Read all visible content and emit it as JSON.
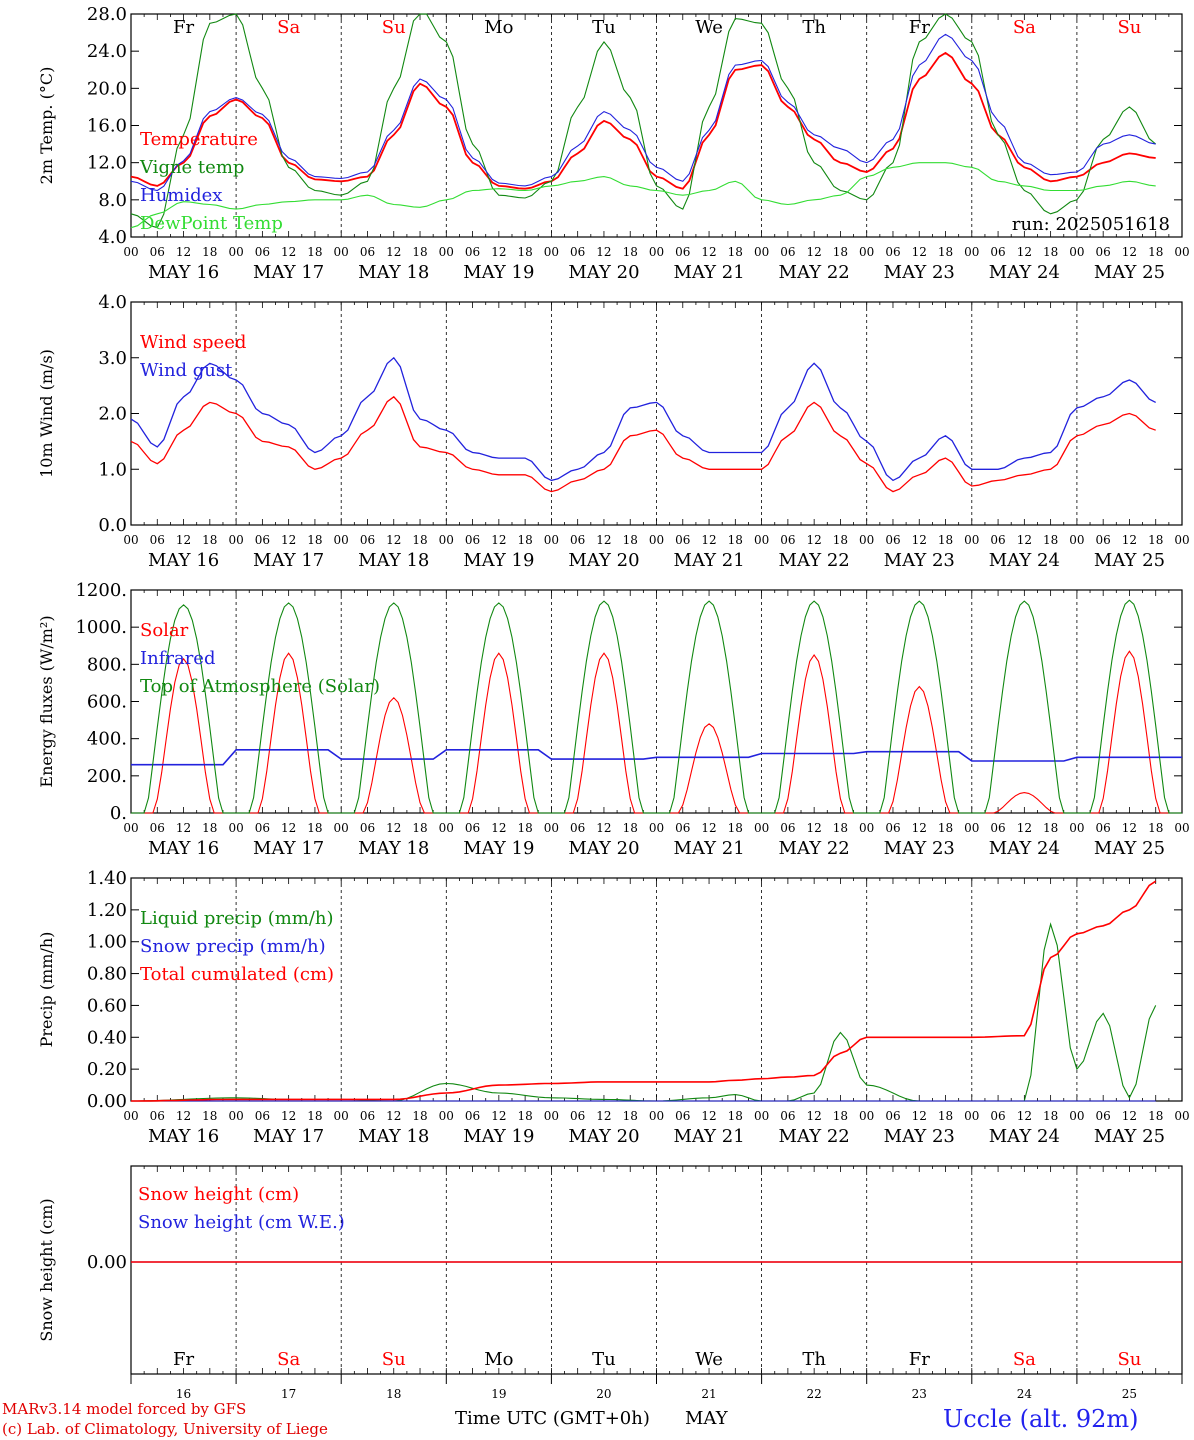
{
  "chart_data": [
    {
      "type": "line",
      "ylabel": "2m Temp. (°C)",
      "ylim": [
        4.0,
        28.0
      ],
      "yticks": [
        "4.0",
        "8.0",
        "12.0",
        "16.0",
        "20.0",
        "24.0",
        "28.0"
      ],
      "annotation": "run: 2025051618",
      "x_hours": [
        0,
        6,
        12,
        18,
        24,
        30,
        36,
        42,
        48,
        54,
        60,
        66,
        72,
        78,
        84,
        90,
        96,
        102,
        108,
        114,
        120,
        126,
        132,
        138,
        144,
        150,
        156,
        162,
        168,
        174,
        180,
        186,
        192,
        198,
        204,
        210,
        216,
        222,
        228,
        234
      ],
      "series": [
        {
          "name": "Temperature",
          "color": "#ff0000",
          "values": [
            10.5,
            9.5,
            12.0,
            17.0,
            18.8,
            16.8,
            12.0,
            10.2,
            10.0,
            10.5,
            15.0,
            20.5,
            18.0,
            12.0,
            9.5,
            9.2,
            10.0,
            13.0,
            16.5,
            14.5,
            10.5,
            9.2,
            15.0,
            22.0,
            22.5,
            18.0,
            14.5,
            12.0,
            11.0,
            13.5,
            21.0,
            23.8,
            20.5,
            15.0,
            11.5,
            10.0,
            10.5,
            12.0,
            13.0,
            12.5
          ]
        },
        {
          "name": "Vigne temp",
          "color": "#118811",
          "values": [
            6.5,
            5.0,
            15.0,
            27.0,
            28.0,
            20.0,
            11.5,
            9.0,
            8.5,
            10.0,
            20.0,
            28.5,
            25.0,
            14.0,
            8.5,
            8.2,
            10.0,
            18.0,
            25.0,
            19.0,
            9.5,
            7.0,
            18.0,
            27.5,
            27.0,
            20.0,
            12.0,
            9.0,
            8.0,
            12.0,
            25.0,
            28.0,
            25.0,
            15.0,
            9.0,
            6.5,
            8.0,
            14.5,
            18.0,
            14.0
          ]
        },
        {
          "name": "Humidex",
          "color": "#2222dd",
          "values": [
            10.0,
            9.0,
            12.2,
            17.5,
            19.0,
            17.2,
            12.5,
            10.5,
            10.3,
            11.0,
            15.5,
            21.0,
            18.8,
            12.5,
            9.8,
            9.5,
            10.5,
            13.8,
            17.5,
            15.5,
            11.5,
            10.0,
            15.5,
            22.5,
            23.0,
            18.5,
            15.0,
            13.5,
            12.0,
            14.5,
            22.5,
            25.8,
            23.0,
            16.5,
            12.0,
            10.7,
            11.0,
            14.0,
            15.0,
            14.0
          ]
        },
        {
          "name": "DewPoint Temp",
          "color": "#33dd33",
          "values": [
            5.0,
            6.5,
            7.8,
            7.5,
            7.0,
            7.5,
            7.8,
            8.0,
            8.0,
            8.5,
            7.5,
            7.2,
            8.0,
            9.0,
            9.2,
            9.0,
            9.5,
            10.0,
            10.5,
            9.5,
            9.0,
            8.5,
            9.0,
            10.0,
            8.0,
            7.5,
            8.0,
            8.5,
            10.5,
            11.5,
            12.0,
            12.0,
            11.5,
            10.0,
            9.5,
            9.0,
            9.0,
            9.5,
            10.0,
            9.5
          ]
        }
      ]
    },
    {
      "type": "line",
      "ylabel": "10m Wind (m/s)",
      "ylim": [
        0.0,
        4.0
      ],
      "yticks": [
        "0.0",
        "1.0",
        "2.0",
        "3.0",
        "4.0"
      ],
      "x_hours": [
        0,
        6,
        12,
        18,
        24,
        30,
        36,
        42,
        48,
        54,
        60,
        66,
        72,
        78,
        84,
        90,
        96,
        102,
        108,
        114,
        120,
        126,
        132,
        138,
        144,
        150,
        156,
        162,
        168,
        174,
        180,
        186,
        192,
        198,
        204,
        210,
        216,
        222,
        228,
        234
      ],
      "series": [
        {
          "name": "Wind speed",
          "color": "#ff0000",
          "values": [
            1.5,
            1.1,
            1.7,
            2.2,
            2.0,
            1.5,
            1.4,
            1.0,
            1.2,
            1.7,
            2.3,
            1.4,
            1.3,
            1.0,
            0.9,
            0.9,
            0.6,
            0.8,
            1.0,
            1.6,
            1.7,
            1.2,
            1.0,
            1.0,
            1.0,
            1.6,
            2.2,
            1.6,
            1.1,
            0.6,
            0.9,
            1.2,
            0.7,
            0.8,
            0.9,
            1.0,
            1.6,
            1.8,
            2.0,
            1.7
          ]
        },
        {
          "name": "Wind gust",
          "color": "#2222dd",
          "values": [
            1.9,
            1.4,
            2.3,
            2.9,
            2.6,
            2.0,
            1.8,
            1.3,
            1.6,
            2.3,
            3.0,
            1.9,
            1.7,
            1.3,
            1.2,
            1.2,
            0.8,
            1.0,
            1.3,
            2.1,
            2.2,
            1.6,
            1.3,
            1.3,
            1.3,
            2.1,
            2.9,
            2.1,
            1.5,
            0.8,
            1.2,
            1.6,
            1.0,
            1.0,
            1.2,
            1.3,
            2.1,
            2.3,
            2.6,
            2.2
          ]
        }
      ]
    },
    {
      "type": "line",
      "ylabel": "Energy fluxes (W/m²)",
      "ylim": [
        0,
        1200
      ],
      "yticks": [
        "0.",
        "200.",
        "400.",
        "600.",
        "800.",
        "1000.",
        "1200."
      ],
      "series": [
        {
          "name": "Solar",
          "color": "#ff0000",
          "peak_values": [
            830,
            860,
            620,
            860,
            860,
            480,
            850,
            680,
            110,
            870
          ]
        },
        {
          "name": "Infrared",
          "color": "#2222dd",
          "base_values": [
            260,
            340,
            290,
            340,
            290,
            300,
            320,
            330,
            280,
            300
          ]
        },
        {
          "name": "Top of Atmosphere (Solar)",
          "color": "#118811",
          "peak_values": [
            1120,
            1130,
            1130,
            1130,
            1140,
            1140,
            1140,
            1140,
            1140,
            1145
          ]
        }
      ]
    },
    {
      "type": "line",
      "ylabel": "Precip (mm/h)",
      "ylim": [
        0.0,
        1.4
      ],
      "yticks": [
        "0.00",
        "0.20",
        "0.40",
        "0.60",
        "0.80",
        "1.00",
        "1.20",
        "1.40"
      ],
      "x_hours": [
        0,
        24,
        36,
        48,
        60,
        72,
        84,
        96,
        108,
        120,
        132,
        138,
        144,
        150,
        156,
        162,
        168,
        180,
        192,
        204,
        210,
        216,
        222,
        228,
        234
      ],
      "series": [
        {
          "name": "Liquid precip (mm/h)",
          "color": "#118811",
          "values": [
            0,
            0.02,
            0.01,
            0.01,
            0,
            0.11,
            0.05,
            0.02,
            0.01,
            0,
            0.02,
            0.04,
            0,
            0,
            0.05,
            0.43,
            0.1,
            0,
            0,
            0,
            1.11,
            0.2,
            0.55,
            0.02,
            0.6
          ]
        },
        {
          "name": "Snow precip (mm/h)",
          "color": "#2222dd",
          "values": [
            0,
            0,
            0,
            0,
            0,
            0,
            0,
            0,
            0,
            0,
            0,
            0,
            0,
            0,
            0,
            0,
            0,
            0,
            0,
            0,
            0,
            0,
            0,
            0,
            0
          ]
        },
        {
          "name": "Total cumulated (cm)",
          "color": "#ff0000",
          "values": [
            0,
            0.01,
            0.01,
            0.01,
            0.01,
            0.05,
            0.1,
            0.11,
            0.12,
            0.12,
            0.12,
            0.13,
            0.14,
            0.15,
            0.16,
            0.3,
            0.4,
            0.4,
            0.4,
            0.41,
            0.9,
            1.05,
            1.1,
            1.2,
            1.38
          ]
        }
      ]
    },
    {
      "type": "line",
      "ylabel": "Snow height (cm)",
      "yticks": [
        "0.00"
      ],
      "series": [
        {
          "name": "Snow height (cm)",
          "color": "#ff0000",
          "values": [
            0,
            0
          ]
        },
        {
          "name": "Snow height (cm W.E.)",
          "color": "#2222dd",
          "values": [
            0,
            0
          ]
        }
      ]
    }
  ],
  "x_hour_ticks": [
    "00",
    "06",
    "12",
    "18"
  ],
  "dates": [
    "MAY 16",
    "MAY 17",
    "MAY 18",
    "MAY 19",
    "MAY 20",
    "MAY 21",
    "MAY 22",
    "MAY 23",
    "MAY 24",
    "MAY 25"
  ],
  "days": [
    {
      "label": "Fr",
      "color": "#000000"
    },
    {
      "label": "Sa",
      "color": "#ff0000"
    },
    {
      "label": "Su",
      "color": "#ff0000"
    },
    {
      "label": "Mo",
      "color": "#000000"
    },
    {
      "label": "Tu",
      "color": "#000000"
    },
    {
      "label": "We",
      "color": "#000000"
    },
    {
      "label": "Th",
      "color": "#000000"
    },
    {
      "label": "Fr",
      "color": "#000000"
    },
    {
      "label": "Sa",
      "color": "#ff0000"
    },
    {
      "label": "Su",
      "color": "#ff0000"
    }
  ],
  "day_numbers": [
    "16",
    "17",
    "18",
    "19",
    "20",
    "21",
    "22",
    "23",
    "24",
    "25"
  ],
  "xlabel": "Time UTC (GMT+0h)",
  "month": "MAY",
  "footer": {
    "line1": "MARv3.14 model forced by GFS",
    "line2": "(c) Lab. of Climatology, University of Liege",
    "station": "Uccle (alt. 92m)"
  }
}
